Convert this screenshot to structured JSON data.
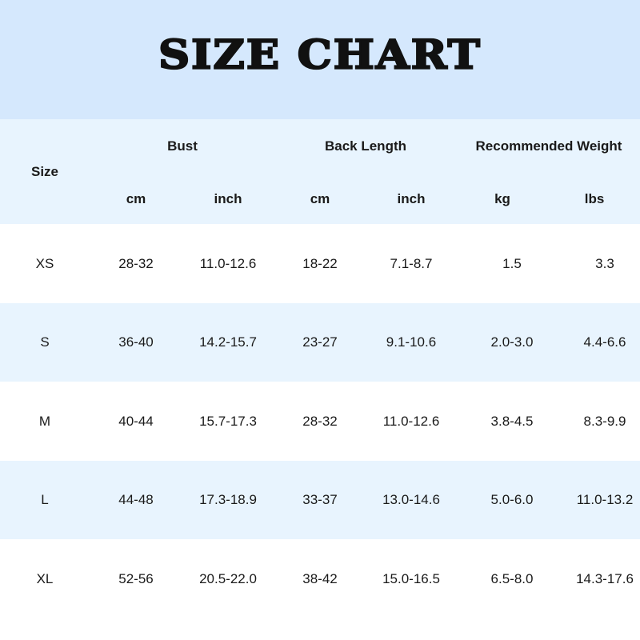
{
  "title": "SIZE CHART",
  "header": {
    "size": "Size",
    "groups": [
      "Bust",
      "Back Length",
      "Recommended Weight"
    ],
    "units": [
      "cm",
      "inch",
      "cm",
      "inch",
      "kg",
      "lbs"
    ]
  },
  "rows": [
    [
      "XS",
      "28-32",
      "11.0-12.6",
      "18-22",
      "7.1-8.7",
      "1.5",
      "3.3"
    ],
    [
      "S",
      "36-40",
      "14.2-15.7",
      "23-27",
      "9.1-10.6",
      "2.0-3.0",
      "4.4-6.6"
    ],
    [
      "M",
      "40-44",
      "15.7-17.3",
      "28-32",
      "11.0-12.6",
      "3.8-4.5",
      "8.3-9.9"
    ],
    [
      "L",
      "44-48",
      "17.3-18.9",
      "33-37",
      "13.0-14.6",
      "5.0-6.0",
      "11.0-13.2"
    ],
    [
      "XL",
      "52-56",
      "20.5-22.0",
      "38-42",
      "15.0-16.5",
      "6.5-8.0",
      "14.3-17.6"
    ]
  ],
  "colors": {
    "title_band": "#d5e8fd",
    "header_band": "#e8f4fe",
    "alt_row": "#e8f4fe"
  }
}
